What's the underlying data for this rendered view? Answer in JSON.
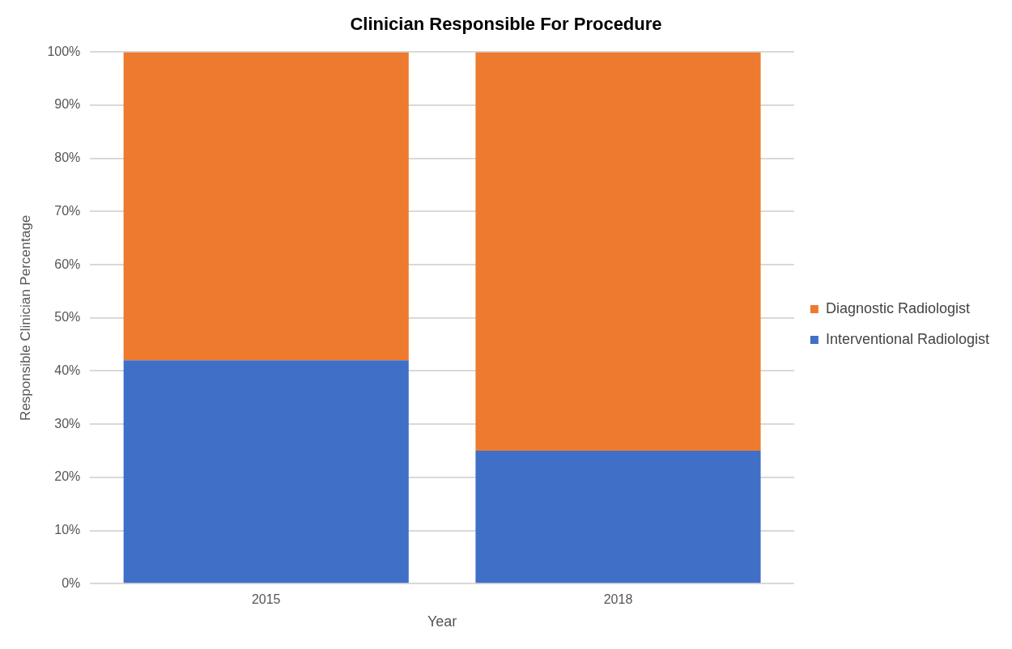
{
  "chart_data": {
    "type": "bar",
    "title": "Clinician Responsible For Procedure",
    "xlabel": "Year",
    "ylabel": "Responsible Clinician Percentage",
    "categories": [
      "2015",
      "2018"
    ],
    "stacked": true,
    "series": [
      {
        "name": "Interventional Radiologist",
        "color": "#3f6fc6",
        "values": [
          42,
          25
        ]
      },
      {
        "name": "Diagnostic Radiologist",
        "color": "#ed7a2e",
        "values": [
          58,
          75
        ]
      }
    ],
    "ylim": [
      0,
      100
    ],
    "yticks": [
      {
        "value": 0,
        "label": "0%"
      },
      {
        "value": 10,
        "label": "10%"
      },
      {
        "value": 20,
        "label": "20%"
      },
      {
        "value": 30,
        "label": "30%"
      },
      {
        "value": 40,
        "label": "40%"
      },
      {
        "value": 50,
        "label": "50%"
      },
      {
        "value": 60,
        "label": "60%"
      },
      {
        "value": 70,
        "label": "70%"
      },
      {
        "value": 80,
        "label": "80%"
      },
      {
        "value": 90,
        "label": "90%"
      },
      {
        "value": 100,
        "label": "100%"
      }
    ],
    "grid": "y",
    "legend": "right"
  }
}
